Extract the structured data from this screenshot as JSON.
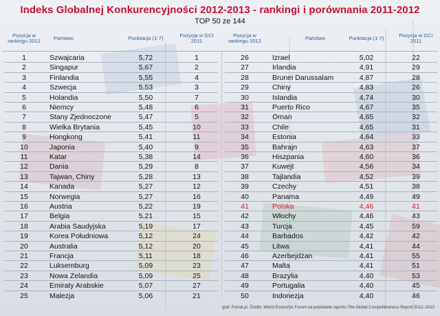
{
  "title": "Indeks Globalnej Konkurencyjności 2012-2013 - rankingi i porównania 2011-2012",
  "subtitle": "TOP 50 ze 144",
  "headers": {
    "rank": "Pozycja w rankingu 2012",
    "country": "Państwo",
    "score": "Punktacja (1-7)",
    "prev": "Pozycja w GCI 2011"
  },
  "left_rows": [
    {
      "rank": "1",
      "country": "Szwajcaria",
      "score": "5,72",
      "prev": "1"
    },
    {
      "rank": "2",
      "country": "Singapur",
      "score": "5,67",
      "prev": "2"
    },
    {
      "rank": "3",
      "country": "Finlandia",
      "score": "5,55",
      "prev": "4"
    },
    {
      "rank": "4",
      "country": "Szwecja",
      "score": "5,53",
      "prev": "3"
    },
    {
      "rank": "5",
      "country": "Holandia",
      "score": "5,50",
      "prev": "7"
    },
    {
      "rank": "6",
      "country": "Niemcy",
      "score": "5,48",
      "prev": "6"
    },
    {
      "rank": "7",
      "country": "Stany Zjednoczone",
      "score": "5,47",
      "prev": "5"
    },
    {
      "rank": "8",
      "country": "Wielka Brytania",
      "score": "5,45",
      "prev": "10"
    },
    {
      "rank": "9",
      "country": "Hongkong",
      "score": "5,41",
      "prev": "11"
    },
    {
      "rank": "10",
      "country": "Japonia",
      "score": "5,40",
      "prev": "9"
    },
    {
      "rank": "11",
      "country": "Katar",
      "score": "5,38",
      "prev": "14"
    },
    {
      "rank": "12",
      "country": "Dania",
      "score": "5,29",
      "prev": "8"
    },
    {
      "rank": "13",
      "country": "Tajwan, Chiny",
      "score": "5,28",
      "prev": "13"
    },
    {
      "rank": "14",
      "country": "Kanada",
      "score": "5,27",
      "prev": "12"
    },
    {
      "rank": "15",
      "country": "Norwegia",
      "score": "5,27",
      "prev": "16"
    },
    {
      "rank": "16",
      "country": "Austria",
      "score": "5,22",
      "prev": "19"
    },
    {
      "rank": "17",
      "country": "Belgia",
      "score": "5,21",
      "prev": "15"
    },
    {
      "rank": "18",
      "country": "Arabia Saudyjska",
      "score": "5,19",
      "prev": "17"
    },
    {
      "rank": "19",
      "country": "Korea Południowa",
      "score": "5,12",
      "prev": "24"
    },
    {
      "rank": "20",
      "country": "Australia",
      "score": "5,12",
      "prev": "20"
    },
    {
      "rank": "21",
      "country": "Francja",
      "score": "5,11",
      "prev": "18"
    },
    {
      "rank": "22",
      "country": "Luksemburg",
      "score": "5,09",
      "prev": "23"
    },
    {
      "rank": "23",
      "country": "Nowa Zelandia",
      "score": "5,09",
      "prev": "25"
    },
    {
      "rank": "24",
      "country": "Emiraty Arabskie",
      "score": "5,07",
      "prev": "27"
    },
    {
      "rank": "25",
      "country": "Malezja",
      "score": "5,06",
      "prev": "21"
    }
  ],
  "right_rows": [
    {
      "rank": "26",
      "country": "Izrael",
      "score": "5,02",
      "prev": "22"
    },
    {
      "rank": "27",
      "country": "Irlandia",
      "score": "4,91",
      "prev": "29"
    },
    {
      "rank": "28",
      "country": "Brunei Darussalam",
      "score": "4,87",
      "prev": "28"
    },
    {
      "rank": "29",
      "country": "Chiny",
      "score": "4,83",
      "prev": "26"
    },
    {
      "rank": "30",
      "country": "Islandia",
      "score": "4,74",
      "prev": "30"
    },
    {
      "rank": "31",
      "country": "Puerto Rico",
      "score": "4,67",
      "prev": "35"
    },
    {
      "rank": "32",
      "country": "Oman",
      "score": "4,65",
      "prev": "32"
    },
    {
      "rank": "33",
      "country": "Chile",
      "score": "4,65",
      "prev": "31"
    },
    {
      "rank": "34",
      "country": "Estonia",
      "score": "4,64",
      "prev": "33"
    },
    {
      "rank": "35",
      "country": "Bahrajn",
      "score": "4,63",
      "prev": "37"
    },
    {
      "rank": "36",
      "country": "Hiszpania",
      "score": "4,60",
      "prev": "36"
    },
    {
      "rank": "37",
      "country": "Kuwejt",
      "score": "4,56",
      "prev": "34"
    },
    {
      "rank": "38",
      "country": "Tajlandia",
      "score": "4,52",
      "prev": "39"
    },
    {
      "rank": "39",
      "country": "Czechy",
      "score": "4,51",
      "prev": "38"
    },
    {
      "rank": "40",
      "country": "Panama",
      "score": "4,49",
      "prev": "49"
    },
    {
      "rank": "41",
      "country": "Polska",
      "score": "4,46",
      "prev": "41",
      "highlight": true
    },
    {
      "rank": "42",
      "country": "Włochy",
      "score": "4,46",
      "prev": "43"
    },
    {
      "rank": "43",
      "country": "Turcja",
      "score": "4,45",
      "prev": "59"
    },
    {
      "rank": "44",
      "country": "Barbados",
      "score": "4,42",
      "prev": "42"
    },
    {
      "rank": "45",
      "country": "Litwa",
      "score": "4,41",
      "prev": "44"
    },
    {
      "rank": "46",
      "country": "Azerbejdżan",
      "score": "4,41",
      "prev": "55"
    },
    {
      "rank": "47",
      "country": "Malta",
      "score": "4,41",
      "prev": "51"
    },
    {
      "rank": "48",
      "country": "Brazylia",
      "score": "4,40",
      "prev": "53"
    },
    {
      "rank": "49",
      "country": "Portugalia",
      "score": "4,40",
      "prev": "45"
    },
    {
      "rank": "50",
      "country": "Indonezja",
      "score": "4,40",
      "prev": "46"
    }
  ],
  "footer": "graf. Forsal.pl, Źródło: World Economic Forum na podstawie raportu The Global Competitiveness Report 2012–2013",
  "colors": {
    "title": "#c8102e",
    "header": "#2b5a9a",
    "highlight": "#e01a22"
  }
}
